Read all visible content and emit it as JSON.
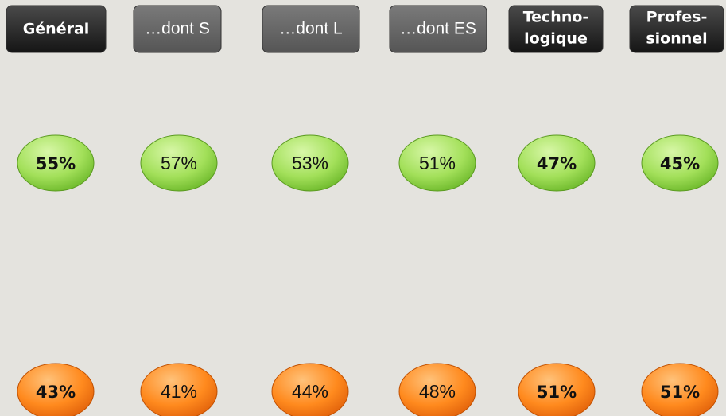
{
  "columns": [
    {
      "header": [
        "Général"
      ],
      "emphasis": true,
      "top": "55%",
      "bottom": "43%"
    },
    {
      "header": [
        "…dont S"
      ],
      "emphasis": false,
      "top": "57%",
      "bottom": "41%"
    },
    {
      "header": [
        "…dont L"
      ],
      "emphasis": false,
      "top": "53%",
      "bottom": "44%"
    },
    {
      "header": [
        "…dont ES"
      ],
      "emphasis": false,
      "top": "51%",
      "bottom": "48%"
    },
    {
      "header": [
        "Techno-",
        "logique"
      ],
      "emphasis": true,
      "top": "47%",
      "bottom": "51%"
    },
    {
      "header": [
        "Profes-",
        "sionnel"
      ],
      "emphasis": true,
      "top": "45%",
      "bottom": "51%"
    }
  ]
}
